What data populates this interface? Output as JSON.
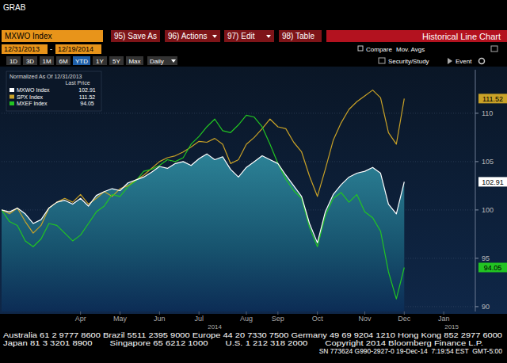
{
  "header": {
    "grab": "GRAB",
    "security": "MXWO Index",
    "buttons": [
      "95) Save As",
      "96) Actions",
      "97) Edit",
      "98) Table"
    ],
    "title": "Historical Line Chart",
    "start_date": "12/31/2013",
    "date_separator": "-",
    "end_date": "12/19/2014",
    "compare": "Compare",
    "mov_avgs": "Mov. Avgs",
    "periods": [
      "1D",
      "3D",
      "1M",
      "6M",
      "YTD",
      "1Y",
      "5Y",
      "Max"
    ],
    "selected_period": "YTD",
    "frequency": "Daily",
    "study": "Security/Study",
    "event": "Event"
  },
  "chart_data": {
    "type": "line",
    "legend_title": "Normalized As Of 12/31/2013",
    "legend_subtitle": "Last Price",
    "legend": "top-left",
    "grid": true,
    "categories": [
      null,
      null,
      null,
      null,
      null,
      null,
      null,
      null,
      null,
      null,
      "Apr",
      null,
      null,
      null,
      null,
      "May",
      null,
      null,
      null,
      null,
      "Jun",
      null,
      null,
      null,
      null,
      "Jul",
      null,
      null,
      null,
      null,
      null,
      "Aug",
      null,
      null,
      null,
      "Sep",
      null,
      null,
      null,
      null,
      "Oct",
      null,
      null,
      null,
      null,
      null,
      "Nov",
      null,
      null,
      null,
      null,
      "Dec",
      null,
      null,
      null,
      null,
      "Jan",
      null,
      null,
      null
    ],
    "x_year_labels": [
      null,
      null,
      null,
      null,
      null,
      null,
      null,
      null,
      null,
      null,
      null,
      null,
      null,
      null,
      null,
      null,
      null,
      null,
      null,
      null,
      null,
      null,
      null,
      null,
      null,
      null,
      null,
      "2014",
      null,
      null,
      null,
      null,
      null,
      null,
      null,
      null,
      null,
      null,
      null,
      null,
      null,
      null,
      null,
      null,
      null,
      null,
      null,
      null,
      null,
      null,
      null,
      null,
      null,
      null,
      null,
      null,
      null,
      "2015",
      null,
      null
    ],
    "ylim": [
      89.5,
      114.5
    ],
    "yticks": [
      90,
      95,
      100,
      105,
      110
    ],
    "series": [
      {
        "name": "MXWO Index",
        "type": "area",
        "color": "#ffffff",
        "values": [
          100.0,
          99.8,
          100.2,
          99.6,
          98.6,
          99.0,
          100.2,
          100.8,
          101.0,
          100.6,
          101.2,
          100.4,
          101.5,
          101.9,
          102.2,
          102.0,
          102.8,
          103.1,
          103.4,
          103.9,
          104.5,
          104.3,
          104.8,
          105.0,
          104.6,
          105.3,
          105.8,
          105.2,
          105.5,
          104.2,
          103.4,
          104.4,
          105.0,
          105.6,
          105.2,
          104.8,
          103.6,
          102.5,
          101.4,
          98.6,
          96.6,
          99.8,
          101.6,
          102.6,
          103.4,
          103.8,
          104.0,
          104.4,
          103.8,
          100.6,
          99.6,
          102.91,
          null,
          null,
          null,
          null,
          null,
          null,
          null,
          null
        ]
      },
      {
        "name": "SPX Index",
        "type": "line",
        "color": "#c9a227",
        "values": [
          100.0,
          99.6,
          100.2,
          98.8,
          97.6,
          98.4,
          100.2,
          100.8,
          101.2,
          100.8,
          101.6,
          100.6,
          101.2,
          101.9,
          101.4,
          102.2,
          102.5,
          103.1,
          103.6,
          104.3,
          105.0,
          105.4,
          105.6,
          106.0,
          106.5,
          107.1,
          107.0,
          107.4,
          106.8,
          104.8,
          105.2,
          106.8,
          107.5,
          108.4,
          109.4,
          108.6,
          108.4,
          107.0,
          106.0,
          103.5,
          101.4,
          104.2,
          107.2,
          109.0,
          110.4,
          111.2,
          111.8,
          112.4,
          111.6,
          108.0,
          106.8,
          111.52,
          null,
          null,
          null,
          null,
          null,
          null,
          null,
          null
        ]
      },
      {
        "name": "MXEF Index",
        "type": "line",
        "color": "#22c422",
        "values": [
          100.0,
          98.8,
          98.4,
          96.8,
          96.2,
          97.0,
          98.6,
          98.4,
          97.6,
          96.8,
          97.4,
          98.6,
          99.8,
          100.4,
          101.6,
          101.4,
          102.4,
          103.0,
          104.0,
          104.2,
          104.6,
          105.2,
          105.0,
          105.4,
          106.8,
          107.6,
          108.6,
          109.4,
          108.2,
          108.0,
          108.8,
          109.8,
          109.6,
          108.6,
          106.8,
          104.8,
          103.2,
          102.0,
          101.2,
          98.2,
          96.2,
          99.4,
          101.2,
          101.8,
          100.8,
          101.6,
          99.8,
          99.2,
          97.8,
          93.6,
          90.8,
          94.05,
          null,
          null,
          null,
          null,
          null,
          null,
          null,
          null
        ]
      }
    ]
  },
  "footer": {
    "lines": [
      "Australia 61 2 9777 8600 Brazil 5511 2395 9000 Europe 44 20 7330 7500 Germany 49 69 9204 1210 Hong Kong 852 2977 6000",
      "Japan 81 3 3201 8900       Singapore 65 6212 1000       U.S. 1 212 318 2000       Copyright 2014 Bloomberg Finance L.P.",
      "SN 773624 G990-2927-0 19-Dec-14  7:19:54 EST  GMT-5:00"
    ]
  }
}
